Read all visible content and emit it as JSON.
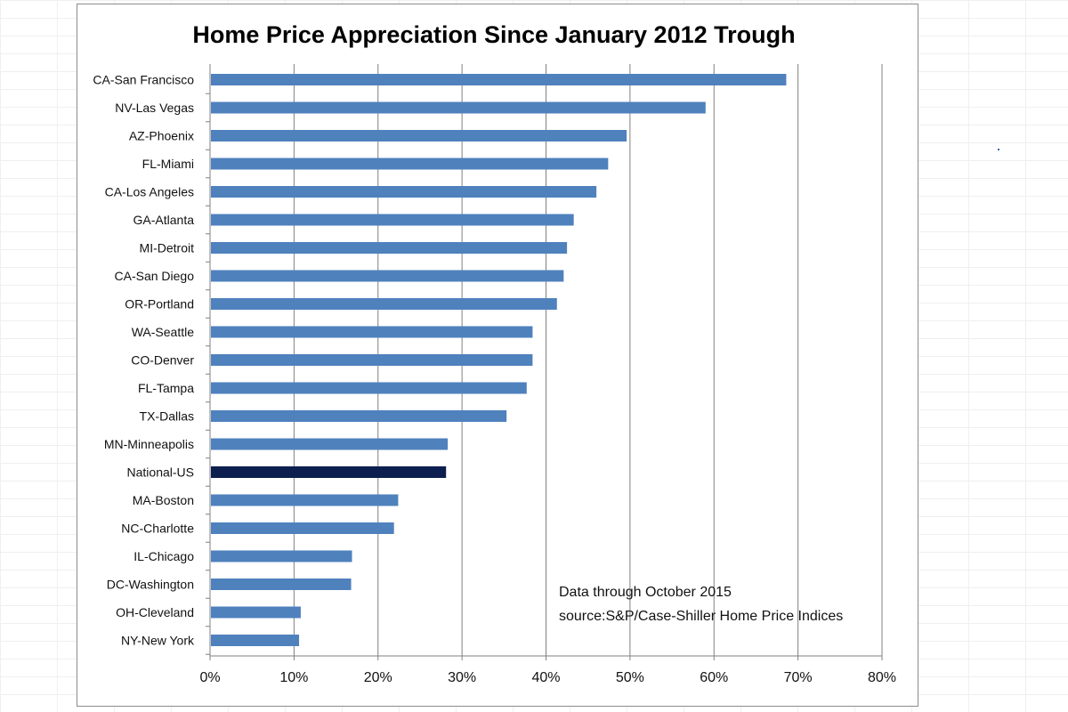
{
  "chart_data": {
    "type": "bar",
    "orientation": "horizontal",
    "title": "Home Price Appreciation Since January 2012 Trough",
    "xlabel": "",
    "ylabel": "",
    "xlim": [
      0,
      80
    ],
    "x_ticks": [
      0,
      10,
      20,
      30,
      40,
      50,
      60,
      70,
      80
    ],
    "x_tick_labels": [
      "0%",
      "10%",
      "20%",
      "30%",
      "40%",
      "50%",
      "60%",
      "70%",
      "80%"
    ],
    "grid": true,
    "categories": [
      "CA-San Francisco",
      "NV-Las Vegas",
      "AZ-Phoenix",
      "FL-Miami",
      "CA-Los Angeles",
      "GA-Atlanta",
      "MI-Detroit",
      "CA-San Diego",
      "OR-Portland",
      "WA-Seattle",
      "CO-Denver",
      "FL-Tampa",
      "TX-Dallas",
      "MN-Minneapolis",
      "National-US",
      "MA-Boston",
      "NC-Charlotte",
      "IL-Chicago",
      "DC-Washington",
      "OH-Cleveland",
      "NY-New York"
    ],
    "values": [
      68.6,
      59.0,
      49.6,
      47.4,
      46.0,
      43.3,
      42.5,
      42.1,
      41.3,
      38.4,
      38.4,
      37.7,
      35.3,
      28.3,
      28.1,
      22.4,
      21.9,
      16.9,
      16.8,
      10.8,
      10.6
    ],
    "highlight_category": "National-US",
    "colors": {
      "bar": "#4f81bd",
      "highlight": "#0d1f4f",
      "grid": "#808080",
      "axis": "#808080"
    },
    "annotations": [
      "Data through October 2015",
      "source:S&P/Case-Shiller Home Price Indices"
    ]
  }
}
